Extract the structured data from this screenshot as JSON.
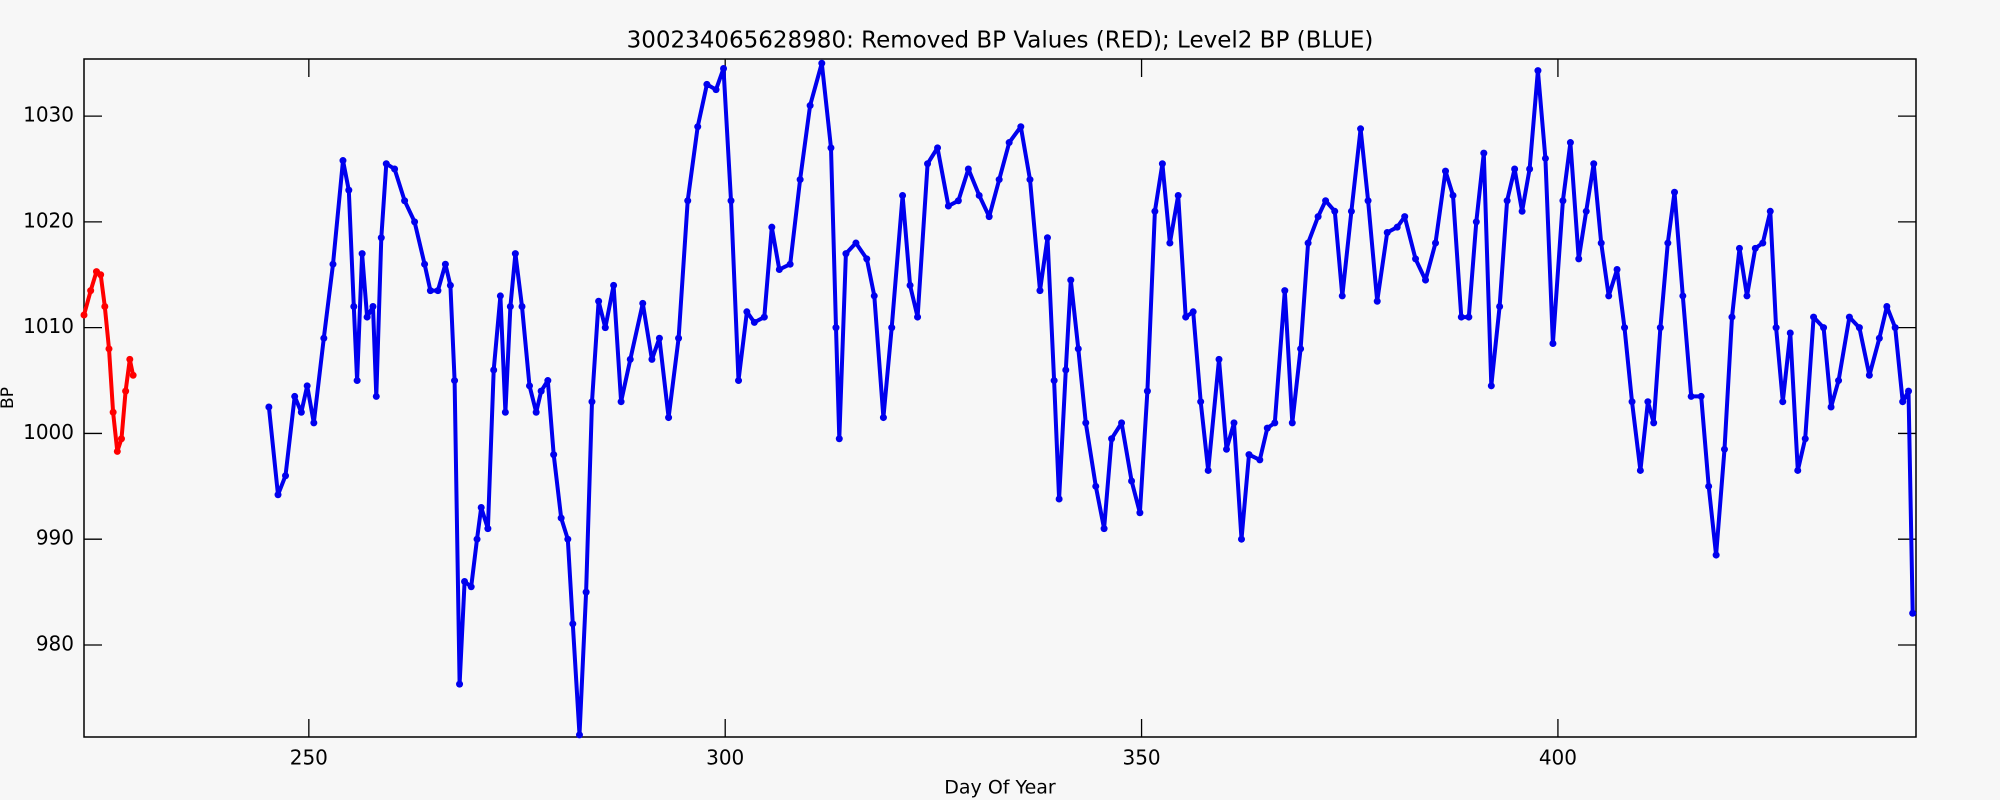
{
  "chart_data": {
    "type": "scatter",
    "title": "300234065628980: Removed BP Values (RED); Level2 BP (BLUE)",
    "x_label": "Day Of Year",
    "y_label": "BP",
    "xlim": [
      223,
      443
    ],
    "ylim": [
      971.3,
      1035.4
    ],
    "xticks": [
      250,
      300,
      350,
      400
    ],
    "yticks": [
      980,
      990,
      1000,
      1010,
      1020,
      1030
    ],
    "series": [
      {
        "color": "#ff0000",
        "x": [
          223,
          223.8,
          224.5,
          225,
          225.5,
          226,
          226.5,
          227,
          227.5,
          228,
          228.5,
          228.9
        ],
        "values": [
          1011.2,
          1013.5,
          1015.3,
          1015,
          1012,
          1008,
          1002,
          998.3,
          999.5,
          1004,
          1007,
          1005.5
        ]
      },
      {
        "color": "#0000ee",
        "x": [
          245.2,
          246.3,
          247.2,
          248.3,
          249.1,
          249.8,
          250.6,
          251.8,
          252.9,
          254.1,
          254.8,
          255.4,
          255.8,
          256.4,
          257.0,
          257.7,
          258.1,
          258.7,
          259.3,
          260.3,
          261.5,
          262.7,
          263.9,
          264.6,
          265.5,
          266.4,
          267.0,
          267.5,
          268.1,
          268.7,
          269.5,
          270.2,
          270.7,
          271.5,
          272.2,
          273.0,
          273.6,
          274.2,
          274.8,
          275.6,
          276.5,
          277.3,
          277.9,
          278.7,
          279.4,
          280.3,
          281.1,
          281.7,
          282.5,
          283.3,
          284.0,
          284.8,
          285.6,
          286.6,
          287.5,
          288.6,
          290.1,
          291.2,
          292.1,
          293.2,
          294.4,
          295.5,
          296.7,
          297.8,
          298.9,
          299.8,
          300.7,
          301.6,
          302.6,
          303.5,
          304.7,
          305.6,
          306.5,
          307.8,
          309.0,
          310.2,
          311.6,
          312.7,
          313.3,
          313.7,
          314.5,
          315.7,
          317.0,
          317.9,
          319.0,
          320.0,
          321.3,
          322.2,
          323.1,
          324.3,
          325.5,
          326.8,
          328.0,
          329.2,
          330.5,
          331.7,
          332.9,
          334.1,
          335.5,
          336.6,
          337.8,
          338.7,
          339.5,
          340.1,
          340.9,
          341.5,
          342.4,
          343.3,
          344.5,
          345.5,
          346.4,
          347.6,
          348.8,
          349.8,
          350.7,
          351.6,
          352.5,
          353.4,
          354.4,
          355.3,
          356.2,
          357.1,
          358.0,
          359.3,
          360.2,
          361.1,
          362.0,
          362.9,
          364.2,
          365.1,
          366.0,
          367.2,
          368.1,
          369.1,
          370.0,
          371.2,
          372.1,
          373.2,
          374.1,
          375.2,
          376.3,
          377.2,
          378.3,
          379.5,
          380.7,
          381.6,
          382.9,
          384.1,
          385.3,
          386.5,
          387.4,
          388.4,
          389.3,
          390.2,
          391.1,
          392.0,
          393.0,
          393.9,
          394.8,
          395.7,
          396.6,
          397.6,
          398.5,
          399.4,
          400.6,
          401.5,
          402.5,
          403.4,
          404.3,
          405.2,
          406.1,
          407.1,
          408.0,
          408.9,
          409.9,
          410.8,
          411.5,
          412.3,
          413.2,
          414.0,
          415.0,
          416.0,
          417.2,
          418.1,
          419.0,
          420.0,
          420.9,
          421.8,
          422.7,
          423.7,
          424.6,
          425.5,
          426.2,
          427.0,
          427.9,
          428.8,
          429.7,
          430.7,
          431.9,
          432.8,
          433.7,
          435.0,
          436.2,
          437.4,
          438.6,
          439.5,
          440.5,
          441.4,
          442.1,
          442.6
        ],
        "values": [
          1002.5,
          994.2,
          996,
          1003.5,
          1002,
          1004.5,
          1001,
          1009,
          1016,
          1025.8,
          1023,
          1012,
          1005,
          1017,
          1011,
          1012,
          1003.5,
          1018.5,
          1025.5,
          1025,
          1022,
          1020,
          1016,
          1013.5,
          1013.5,
          1016,
          1014,
          1005,
          976.3,
          986,
          985.5,
          990,
          993,
          991,
          1006,
          1013,
          1002,
          1012,
          1017,
          1012,
          1004.5,
          1002,
          1004,
          1005,
          998,
          992,
          990,
          982,
          971.5,
          985,
          1003,
          1012.5,
          1010,
          1014,
          1003,
          1007,
          1012.3,
          1007,
          1009,
          1001.5,
          1009,
          1022,
          1029,
          1033,
          1032.5,
          1034.5,
          1022,
          1005,
          1011.5,
          1010.5,
          1011,
          1019.5,
          1015.5,
          1016,
          1024,
          1031,
          1035,
          1027,
          1010,
          999.5,
          1017,
          1018,
          1016.5,
          1013,
          1001.5,
          1010,
          1022.5,
          1014,
          1011,
          1025.5,
          1027,
          1021.5,
          1022,
          1025,
          1022.5,
          1020.5,
          1024,
          1027.5,
          1029,
          1024,
          1013.5,
          1018.5,
          1005,
          993.8,
          1006,
          1014.5,
          1008,
          1001,
          995,
          991,
          999.5,
          1001,
          995.5,
          992.5,
          1004,
          1021,
          1025.5,
          1018,
          1022.5,
          1011,
          1011.5,
          1003,
          996.5,
          1007,
          998.5,
          1001,
          990,
          998,
          997.5,
          1000.5,
          1001,
          1013.5,
          1001,
          1008,
          1018,
          1020.5,
          1022,
          1021,
          1013,
          1021,
          1028.8,
          1022,
          1012.5,
          1019,
          1019.5,
          1020.5,
          1016.5,
          1014.5,
          1018,
          1024.8,
          1022.5,
          1011,
          1011,
          1020,
          1026.5,
          1004.5,
          1012,
          1022,
          1025,
          1021,
          1025,
          1034.3,
          1026,
          1008.5,
          1022,
          1027.5,
          1016.5,
          1021,
          1025.5,
          1018,
          1013,
          1015.5,
          1010,
          1003,
          996.5,
          1003,
          1001,
          1010,
          1018,
          1022.8,
          1013,
          1003.5,
          1003.5,
          995,
          988.5,
          998.5,
          1011,
          1017.5,
          1013,
          1017.5,
          1018,
          1021,
          1010,
          1003,
          1009.5,
          996.5,
          999.5,
          1011,
          1010,
          1002.5,
          1005,
          1011,
          1010,
          1005.5,
          1009,
          1012,
          1010,
          1003,
          1004,
          983
        ]
      }
    ]
  }
}
